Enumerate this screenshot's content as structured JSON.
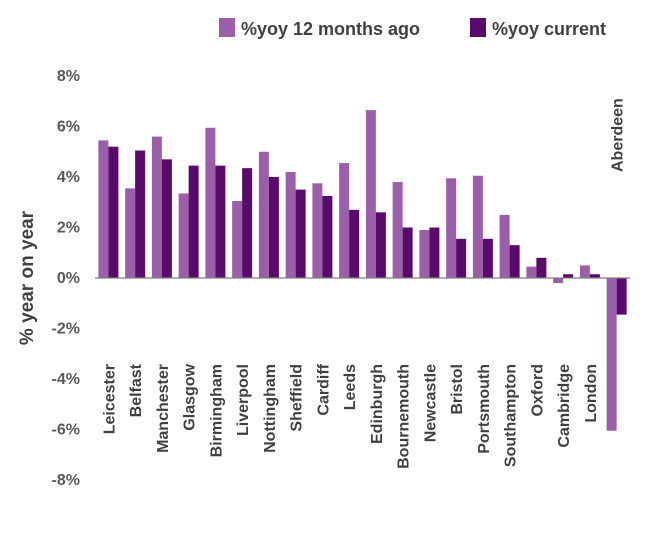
{
  "chart_data": {
    "type": "bar",
    "title": "",
    "xlabel": "",
    "ylabel": "% year on year",
    "ylim": [
      -8,
      8
    ],
    "yticks": [
      -8,
      -6,
      -4,
      -2,
      0,
      2,
      4,
      6,
      8
    ],
    "ytick_labels": [
      "-8%",
      "-6%",
      "-4%",
      "-2%",
      "0%",
      "2%",
      "4%",
      "6%",
      "8%"
    ],
    "grid": false,
    "legend_position": "top-right",
    "categories": [
      "Leicester",
      "Belfast",
      "Manchester",
      "Glasgow",
      "Birmingham",
      "Liverpool",
      "Nottingham",
      "Sheffield",
      "Cardiff",
      "Leeds",
      "Edinburgh",
      "Bournemouth",
      "Newcastle",
      "Bristol",
      "Portsmouth",
      "Southampton",
      "Oxford",
      "Cambridge",
      "London",
      "Aberdeen"
    ],
    "series": [
      {
        "name": "%yoy 12 months ago",
        "color": "#9b5fa9",
        "values": [
          5.45,
          3.55,
          5.6,
          3.35,
          5.95,
          3.05,
          5.0,
          4.2,
          3.75,
          4.55,
          6.65,
          3.8,
          1.9,
          3.95,
          4.05,
          2.5,
          0.45,
          -0.2,
          0.5,
          -6.05
        ]
      },
      {
        "name": "%yoy current",
        "color": "#5a0a6a",
        "values": [
          5.2,
          5.05,
          4.7,
          4.45,
          4.45,
          4.35,
          4.0,
          3.5,
          3.25,
          2.7,
          2.6,
          2.0,
          2.0,
          1.55,
          1.55,
          1.3,
          0.8,
          0.15,
          0.15,
          -1.45
        ]
      }
    ]
  }
}
